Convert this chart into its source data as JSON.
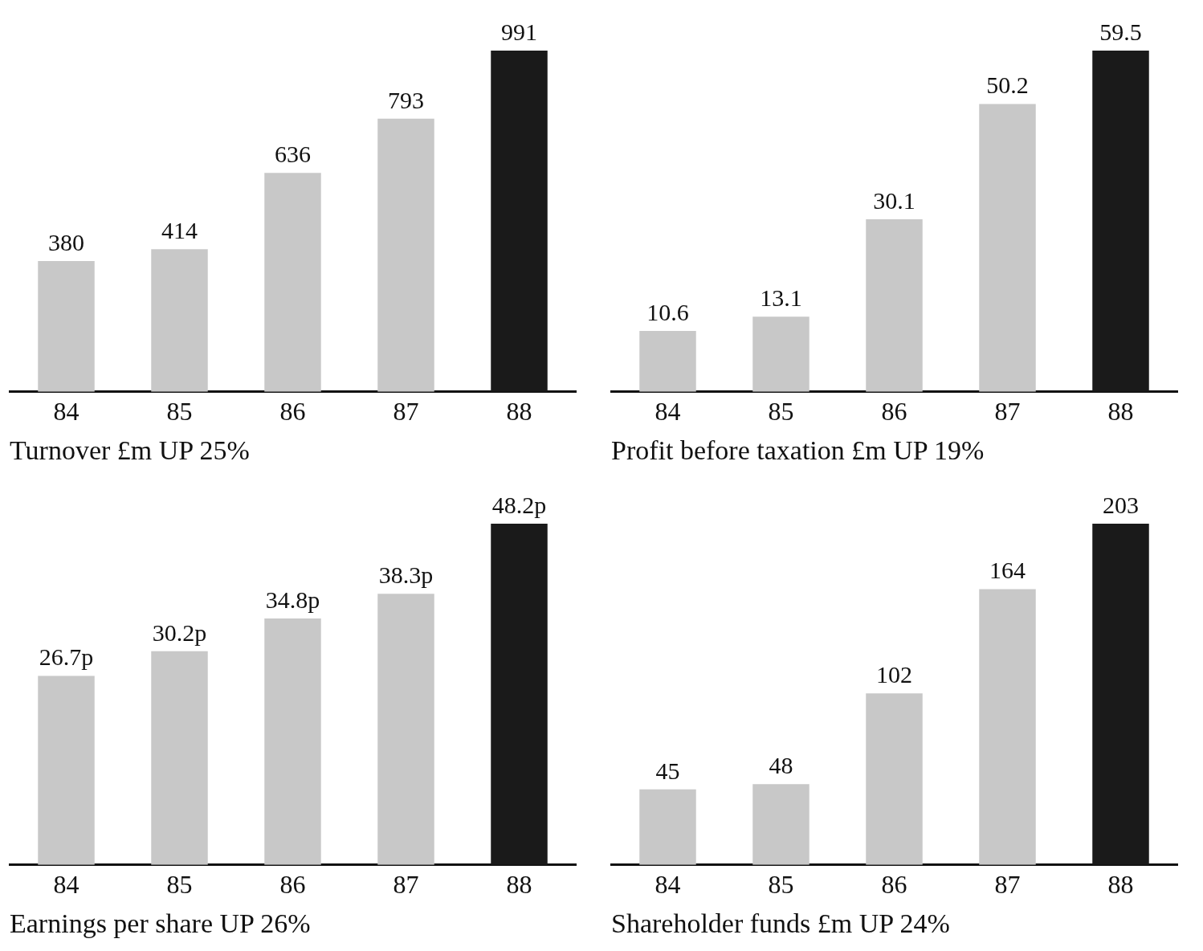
{
  "chart_data": [
    {
      "type": "bar",
      "title": "Turnover £m UP 25%",
      "categories": [
        "84",
        "85",
        "86",
        "87",
        "88"
      ],
      "values": [
        380,
        414,
        636,
        793,
        991
      ],
      "colors": [
        "#c8c8c8",
        "#c8c8c8",
        "#c8c8c8",
        "#c8c8c8",
        "#1a1a1a"
      ],
      "data_labels": true,
      "grid": false,
      "legend": false,
      "tick_labels": "x"
    },
    {
      "type": "bar",
      "title": "Profit before taxation £m UP 19%",
      "categories": [
        "84",
        "85",
        "86",
        "87",
        "88"
      ],
      "values": [
        10.6,
        13.1,
        30.1,
        50.2,
        59.5
      ],
      "colors": [
        "#c8c8c8",
        "#c8c8c8",
        "#c8c8c8",
        "#c8c8c8",
        "#1a1a1a"
      ],
      "data_labels": true,
      "grid": false,
      "legend": false,
      "tick_labels": "x"
    },
    {
      "type": "bar",
      "title": "Earnings per share UP 26%",
      "categories": [
        "84",
        "85",
        "86",
        "87",
        "88"
      ],
      "values": [
        26.7,
        30.2,
        34.8,
        38.3,
        48.2
      ],
      "value_labels": [
        "26.7p",
        "30.2p",
        "34.8p",
        "38.3p",
        "48.2p"
      ],
      "colors": [
        "#c8c8c8",
        "#c8c8c8",
        "#c8c8c8",
        "#c8c8c8",
        "#1a1a1a"
      ],
      "grid": false,
      "legend": false,
      "tick_labels": "x"
    },
    {
      "type": "bar",
      "title": "Shareholder funds £m UP 24%",
      "categories": [
        "84",
        "85",
        "86",
        "87",
        "88"
      ],
      "values": [
        45,
        48,
        102,
        164,
        203
      ],
      "colors": [
        "#c8c8c8",
        "#c8c8c8",
        "#c8c8c8",
        "#c8c8c8",
        "#1a1a1a"
      ],
      "data_labels": true,
      "grid": false,
      "legend": false,
      "tick_labels": "x"
    }
  ]
}
